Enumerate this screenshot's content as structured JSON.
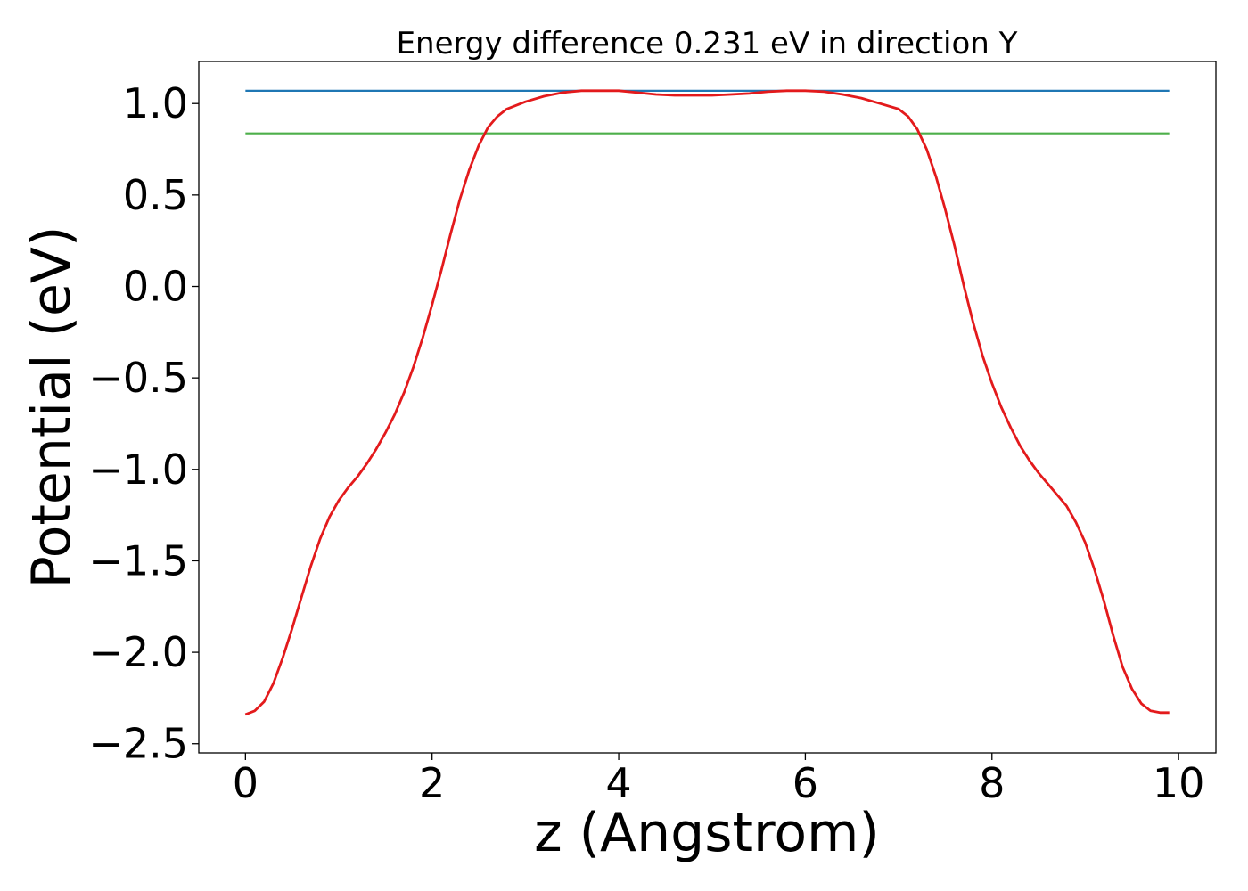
{
  "chart_data": {
    "type": "line",
    "title": "Energy difference 0.231 eV in direction Y",
    "xlabel": "z (Angstrom)",
    "ylabel": "Potential (eV)",
    "xlim": [
      -0.5,
      10.4
    ],
    "ylim": [
      -2.55,
      1.23
    ],
    "xticks": [
      0,
      2,
      4,
      6,
      8,
      10
    ],
    "yticks": [
      -2.5,
      -2.0,
      -1.5,
      -1.0,
      -0.5,
      0.0,
      0.5,
      1.0
    ],
    "xtick_labels": [
      "0",
      "2",
      "4",
      "6",
      "8",
      "10"
    ],
    "ytick_labels": [
      "−2.5",
      "−2.0",
      "−1.5",
      "−1.0",
      "−0.5",
      "0.0",
      "0.5",
      "1.0"
    ],
    "grid": false,
    "legend": "none",
    "series": [
      {
        "kind": "curve",
        "color": "#e31a1c",
        "x": [
          0.0,
          0.1,
          0.2,
          0.3,
          0.4,
          0.5,
          0.6,
          0.7,
          0.8,
          0.9,
          1.0,
          1.1,
          1.2,
          1.3,
          1.4,
          1.5,
          1.6,
          1.7,
          1.8,
          1.9,
          2.0,
          2.1,
          2.2,
          2.3,
          2.4,
          2.5,
          2.6,
          2.7,
          2.8,
          2.9,
          3.0,
          3.2,
          3.4,
          3.6,
          3.8,
          4.0,
          4.2,
          4.4,
          4.6,
          4.8,
          5.0,
          5.2,
          5.4,
          5.6,
          5.8,
          6.0,
          6.2,
          6.4,
          6.6,
          6.8,
          7.0,
          7.1,
          7.2,
          7.3,
          7.4,
          7.5,
          7.6,
          7.7,
          7.8,
          7.9,
          8.0,
          8.1,
          8.2,
          8.3,
          8.4,
          8.5,
          8.6,
          8.7,
          8.8,
          8.9,
          9.0,
          9.1,
          9.2,
          9.3,
          9.4,
          9.5,
          9.6,
          9.7,
          9.8,
          9.9
        ],
        "y": [
          -2.34,
          -2.32,
          -2.27,
          -2.17,
          -2.03,
          -1.87,
          -1.7,
          -1.53,
          -1.38,
          -1.26,
          -1.17,
          -1.1,
          -1.04,
          -0.97,
          -0.89,
          -0.8,
          -0.7,
          -0.58,
          -0.44,
          -0.28,
          -0.1,
          0.09,
          0.29,
          0.48,
          0.64,
          0.77,
          0.87,
          0.93,
          0.97,
          0.99,
          1.01,
          1.04,
          1.06,
          1.07,
          1.07,
          1.07,
          1.06,
          1.05,
          1.045,
          1.045,
          1.045,
          1.05,
          1.055,
          1.065,
          1.07,
          1.07,
          1.065,
          1.05,
          1.03,
          1.0,
          0.97,
          0.93,
          0.86,
          0.75,
          0.6,
          0.42,
          0.22,
          0.0,
          -0.2,
          -0.38,
          -0.53,
          -0.66,
          -0.77,
          -0.87,
          -0.95,
          -1.02,
          -1.08,
          -1.14,
          -1.2,
          -1.29,
          -1.4,
          -1.55,
          -1.72,
          -1.91,
          -2.08,
          -2.2,
          -2.28,
          -2.32,
          -2.33,
          -2.33
        ]
      },
      {
        "kind": "hline",
        "color": "#1f77b4",
        "y": 1.07,
        "x": [
          0.0,
          9.9
        ]
      },
      {
        "kind": "hline",
        "color": "#4daf4a",
        "y": 0.837,
        "x": [
          0.0,
          9.9
        ]
      }
    ]
  }
}
